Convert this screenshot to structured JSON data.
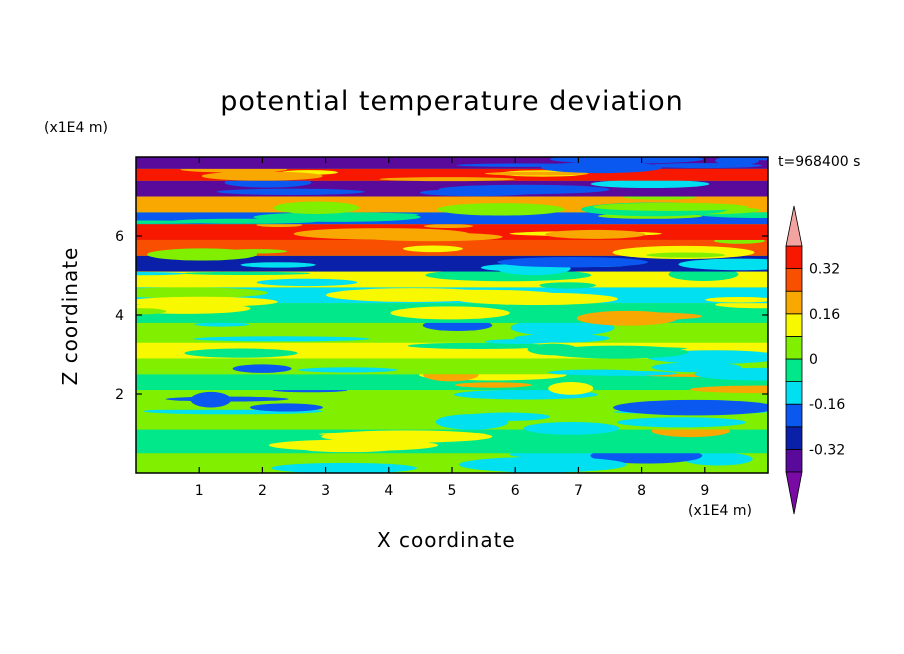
{
  "title": "potential temperature deviation",
  "y_unit": "(x1E4 m)",
  "x_unit": "(x1E4 m)",
  "time_label": "t=968400 s",
  "colors": {
    "above_max": "#f4a4a0",
    "below_min": "#7a0aa6",
    "levels": [
      "#5a0a9a",
      "#0a20a8",
      "#0a58f0",
      "#00e0f0",
      "#00e88a",
      "#80f000",
      "#f8f800",
      "#f8a800",
      "#f85000",
      "#f81800"
    ]
  },
  "chart_data": {
    "type": "heatmap",
    "title": "potential temperature deviation",
    "xlabel": "X coordinate",
    "ylabel": "Z coordinate",
    "x_ticks": [
      "1",
      "2",
      "3",
      "4",
      "5",
      "6",
      "7",
      "8",
      "9"
    ],
    "y_ticks": [
      "2",
      "4",
      "6"
    ],
    "xlim": [
      0,
      10
    ],
    "ylim": [
      0,
      8
    ],
    "colorbar": {
      "ticks": [
        "0.32",
        "0.16",
        "0",
        "-0.16",
        "-0.32"
      ],
      "tick_values": [
        0.32,
        0.16,
        0,
        -0.16,
        -0.32
      ],
      "level_edges": [
        -0.4,
        -0.32,
        -0.24,
        -0.16,
        -0.08,
        0,
        0.08,
        0.16,
        0.24,
        0.32,
        0.4
      ],
      "extends": "both"
    },
    "layers": [
      {
        "z": [
          0.0,
          0.5
        ],
        "value": 0.04
      },
      {
        "z": [
          0.5,
          1.1
        ],
        "value": -0.02
      },
      {
        "z": [
          1.1,
          1.6
        ],
        "value": 0.04
      },
      {
        "z": [
          1.6,
          2.1
        ],
        "value": 0.02
      },
      {
        "z": [
          2.1,
          2.5
        ],
        "value": -0.02
      },
      {
        "z": [
          2.5,
          2.9
        ],
        "value": 0.04
      },
      {
        "z": [
          2.9,
          3.3
        ],
        "value": 0.1
      },
      {
        "z": [
          3.3,
          3.8
        ],
        "value": 0.04
      },
      {
        "z": [
          3.8,
          4.3
        ],
        "value": -0.05
      },
      {
        "z": [
          4.3,
          4.7
        ],
        "value": -0.1
      },
      {
        "z": [
          4.7,
          5.1
        ],
        "value": 0.12
      },
      {
        "z": [
          5.1,
          5.5
        ],
        "value": -0.3
      },
      {
        "z": [
          5.5,
          5.9
        ],
        "value": 0.27
      },
      {
        "z": [
          5.9,
          6.3
        ],
        "value": 0.36
      },
      {
        "z": [
          6.3,
          6.6
        ],
        "value": -0.2
      },
      {
        "z": [
          6.6,
          7.0
        ],
        "value": 0.2
      },
      {
        "z": [
          7.0,
          7.4
        ],
        "value": -0.34
      },
      {
        "z": [
          7.4,
          7.7
        ],
        "value": 0.36
      },
      {
        "z": [
          7.7,
          8.0
        ],
        "value": -0.37
      }
    ]
  }
}
